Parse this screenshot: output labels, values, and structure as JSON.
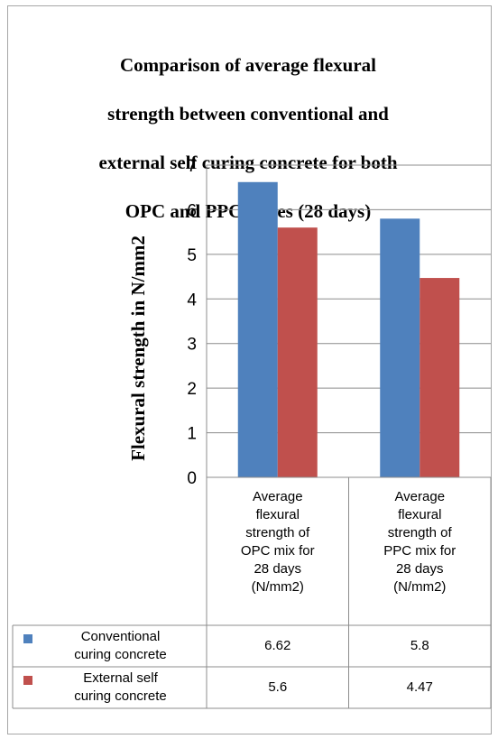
{
  "chart_data": {
    "type": "bar",
    "title": "Comparison of average flexural strength between conventional and external self curing concrete for both OPC and PPC mixes (28 days)",
    "title_lines": [
      "Comparison of average flexural",
      "strength between conventional and",
      "external self curing concrete for both",
      "OPC and PPC mixes (28 days)"
    ],
    "ylabel": "Flexural strength in  N/mm2",
    "xlabel": "",
    "ylim": [
      0,
      7
    ],
    "yticks": [
      "0",
      "1",
      "2",
      "3",
      "4",
      "5",
      "6",
      "7"
    ],
    "grid": true,
    "legend": "data-table",
    "categories": [
      "Average flexural strength of OPC mix for 28 days (N/mm2)",
      "Average flexural strength of PPC mix for 28 days (N/mm2)"
    ],
    "category_lines": [
      [
        "Average",
        "flexural",
        "strength of",
        "OPC mix for",
        "28 days",
        "(N/mm2)"
      ],
      [
        "Average",
        "flexural",
        "strength of",
        "PPC mix for",
        "28 days",
        "(N/mm2)"
      ]
    ],
    "series": [
      {
        "name": "Conventional curing concrete",
        "name_lines": [
          "Conventional",
          "curing concrete"
        ],
        "color": "#4f81bd",
        "values": [
          6.62,
          5.8
        ],
        "value_labels": [
          "6.62",
          "5.8"
        ]
      },
      {
        "name": "External self curing concrete",
        "name_lines": [
          "External self",
          "curing concrete"
        ],
        "color": "#c0504d",
        "values": [
          5.6,
          4.47
        ],
        "value_labels": [
          "5.6",
          "4.47"
        ]
      }
    ]
  }
}
